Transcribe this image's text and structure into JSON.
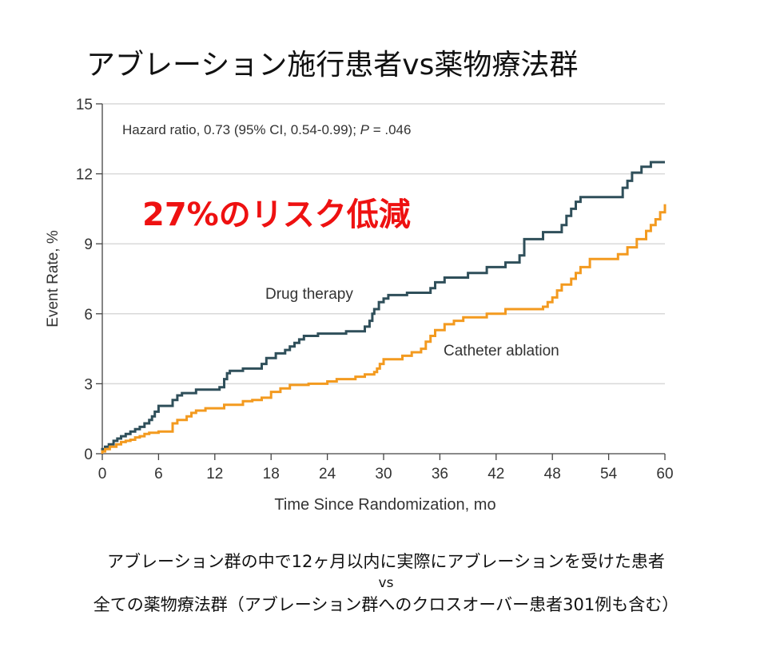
{
  "slide": {
    "title": "アブレーション施行患者vs薬物療法群",
    "caption_line1": "アブレーション群の中で12ヶ月以内に実際にアブレーションを受けた患者",
    "caption_vs": "vs",
    "caption_line2": "全ての薬物療法群（アブレーション群へのクロスオーバー患者301例も含む）"
  },
  "chart_data": {
    "type": "line",
    "step": true,
    "xlabel": "Time Since Randomization, mo",
    "ylabel": "Event Rate, %",
    "xlim": [
      0,
      60
    ],
    "ylim": [
      0,
      15
    ],
    "x_ticks": [
      0,
      6,
      12,
      18,
      24,
      30,
      36,
      42,
      48,
      54,
      60
    ],
    "y_ticks": [
      0,
      3,
      6,
      9,
      12,
      15
    ],
    "grid": "horizontal",
    "annotation_hr_prefix": "Hazard ratio, 0.73 (95% CI, 0.54-0.99); ",
    "annotation_hr_p": "P",
    "annotation_hr_suffix": " = .046",
    "annotation_risk": "27%のリスク低減",
    "colors": {
      "drug": "#2f4f5a",
      "ablation": "#f39a1f",
      "risk": "#ee1111",
      "grid": "#d9d9d9"
    },
    "series": [
      {
        "name": "Drug therapy",
        "x": [
          0,
          0.3,
          0.7,
          1.2,
          1.6,
          2.0,
          2.5,
          3.0,
          3.5,
          4.0,
          4.5,
          5.0,
          5.3,
          5.6,
          6.0,
          7.5,
          8.0,
          8.5,
          10.0,
          12.5,
          13.0,
          13.3,
          13.6,
          15.0,
          17.0,
          17.5,
          18.5,
          19.5,
          20.0,
          20.5,
          21.0,
          21.5,
          23.0,
          26.0,
          28.0,
          28.5,
          28.8,
          29.0,
          29.5,
          30.0,
          30.5,
          32.5,
          35.0,
          35.5,
          36.5,
          39.0,
          41.0,
          43.0,
          44.5,
          45.0,
          47.0,
          49.0,
          49.5,
          50.0,
          50.5,
          51.0,
          55.5,
          56.0,
          56.5,
          57.5,
          58.5,
          60.0
        ],
        "y": [
          0.2,
          0.3,
          0.4,
          0.55,
          0.65,
          0.75,
          0.85,
          0.95,
          1.05,
          1.15,
          1.3,
          1.45,
          1.6,
          1.8,
          2.05,
          2.3,
          2.5,
          2.6,
          2.75,
          2.85,
          3.2,
          3.45,
          3.55,
          3.65,
          3.85,
          4.1,
          4.3,
          4.45,
          4.6,
          4.75,
          4.9,
          5.05,
          5.15,
          5.25,
          5.45,
          5.7,
          6.0,
          6.2,
          6.5,
          6.65,
          6.8,
          6.9,
          7.1,
          7.35,
          7.55,
          7.75,
          8.0,
          8.2,
          8.5,
          9.2,
          9.5,
          9.8,
          10.2,
          10.5,
          10.8,
          11.0,
          11.4,
          11.7,
          12.05,
          12.3,
          12.5,
          12.5
        ]
      },
      {
        "name": "Catheter ablation",
        "x": [
          0,
          0.3,
          0.8,
          1.5,
          2.0,
          2.5,
          3.0,
          3.5,
          4.0,
          4.5,
          5.0,
          6.0,
          7.5,
          8.0,
          9.0,
          9.5,
          10.0,
          11.0,
          13.0,
          15.0,
          16.0,
          17.0,
          18.0,
          19.0,
          20.0,
          22.0,
          24.0,
          25.0,
          27.0,
          28.0,
          29.0,
          29.3,
          29.6,
          30.0,
          32.0,
          33.0,
          34.0,
          34.5,
          35.0,
          35.5,
          36.5,
          37.5,
          38.5,
          41.0,
          43.0,
          47.0,
          47.5,
          48.0,
          48.5,
          49.0,
          50.0,
          50.5,
          51.0,
          52.0,
          55.0,
          56.0,
          57.0,
          58.0,
          58.5,
          59.0,
          59.5,
          60.0
        ],
        "y": [
          0.1,
          0.2,
          0.3,
          0.4,
          0.5,
          0.55,
          0.6,
          0.7,
          0.75,
          0.85,
          0.9,
          0.95,
          1.3,
          1.45,
          1.6,
          1.75,
          1.85,
          1.95,
          2.1,
          2.25,
          2.3,
          2.4,
          2.65,
          2.8,
          2.95,
          3.0,
          3.1,
          3.2,
          3.3,
          3.4,
          3.5,
          3.65,
          3.85,
          4.05,
          4.2,
          4.35,
          4.5,
          4.8,
          5.05,
          5.3,
          5.55,
          5.7,
          5.85,
          6.0,
          6.2,
          6.3,
          6.5,
          6.7,
          7.0,
          7.25,
          7.5,
          7.75,
          8.0,
          8.35,
          8.55,
          8.85,
          9.2,
          9.55,
          9.8,
          10.05,
          10.35,
          10.7
        ]
      }
    ]
  }
}
